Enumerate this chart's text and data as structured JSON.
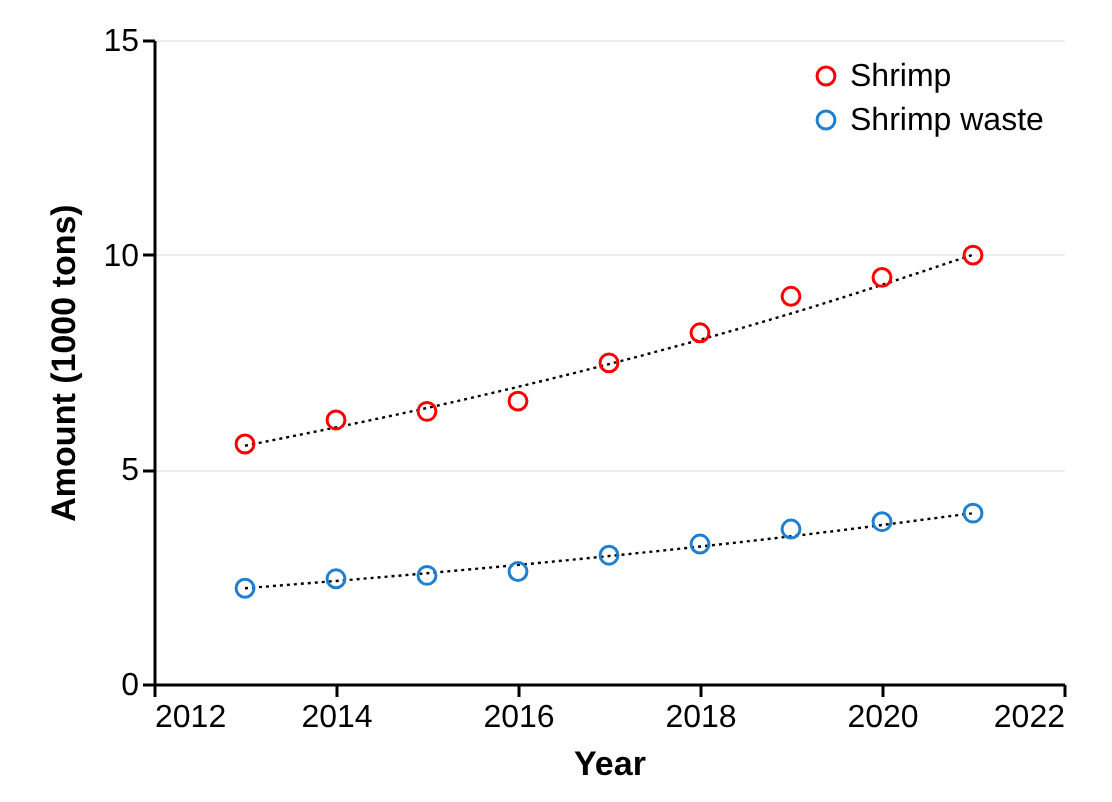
{
  "chart_data": {
    "type": "scatter",
    "xlabel": "Year",
    "ylabel": "Amount (1000 tons)",
    "x": [
      2013,
      2014,
      2015,
      2016,
      2017,
      2018,
      2019,
      2020,
      2021
    ],
    "series": [
      {
        "name": "Shrimp",
        "color": "#ff0000",
        "marker": "circle",
        "values": [
          5.59,
          6.15,
          6.35,
          6.59,
          7.48,
          8.18,
          9.03,
          9.47,
          9.99
        ]
      },
      {
        "name": "Shrimp waste",
        "color": "#1f7fd0",
        "marker": "circle",
        "values": [
          2.23,
          2.45,
          2.53,
          2.62,
          3.0,
          3.26,
          3.61,
          3.78,
          3.98
        ]
      },
      {
        "type": "line",
        "color": "#000000",
        "line_style": "dotted",
        "marker": "none",
        "x": [
          2013,
          2015,
          2017,
          2019,
          2021
        ],
        "values": [
          5.55,
          6.43,
          7.45,
          8.63,
          10.0
        ]
      },
      {
        "type": "line",
        "color": "#000000",
        "line_style": "dotted",
        "marker": "none",
        "x": [
          2013,
          2015,
          2017,
          2019,
          2021
        ],
        "values": [
          2.23,
          2.58,
          2.98,
          3.44,
          3.98
        ]
      }
    ],
    "xlim": [
      2012,
      2022
    ],
    "xticks": [
      2012,
      2014,
      2016,
      2018,
      2020,
      2022
    ],
    "ylim": [
      0,
      15
    ],
    "yticks": [
      0,
      5,
      10,
      15
    ],
    "grid": "y",
    "legend": "top right"
  }
}
